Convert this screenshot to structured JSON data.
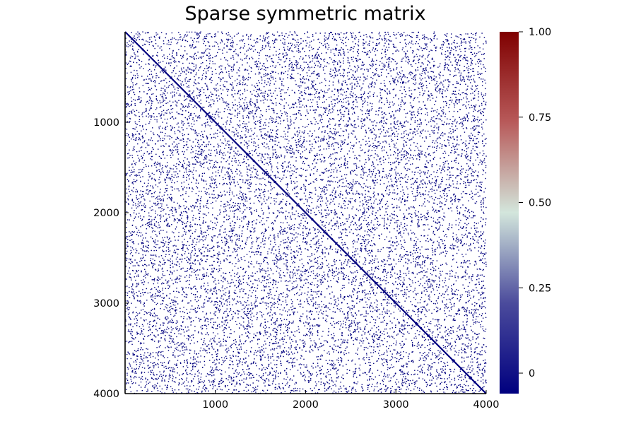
{
  "chart_data": {
    "type": "heatmap",
    "title": "Sparse symmetric matrix",
    "xlabel": "",
    "ylabel": "",
    "matrix_size": 4000,
    "x_range": [
      1,
      4000
    ],
    "y_range": [
      1,
      4000
    ],
    "y_axis_reversed": true,
    "x_ticks": [
      1000,
      2000,
      3000,
      4000
    ],
    "x_tick_labels": [
      "1000",
      "2000",
      "3000",
      "4000"
    ],
    "y_ticks": [
      1000,
      2000,
      3000,
      4000
    ],
    "y_tick_labels": [
      "1000",
      "2000",
      "3000",
      "4000"
    ],
    "diagonal": "full",
    "symmetric": true,
    "off_diagonal_nonzeros_approx": 14000,
    "nonzero_value": 0,
    "colorbar": {
      "colormap": "seismic-style diverging (navy to white-grey to dark red)",
      "range": [
        -0.06,
        1.0
      ],
      "ticks": [
        0,
        0.25,
        0.5,
        0.75,
        1.0
      ],
      "tick_labels": [
        "0",
        "0.25",
        "0.50",
        "0.75",
        "1.00"
      ],
      "stops": [
        "#00007f",
        "#4b4b9c",
        "#d3e6dc",
        "#b85a5a",
        "#7f0000"
      ]
    },
    "marker_color": "#00007f",
    "grid": false,
    "legend": "none"
  }
}
